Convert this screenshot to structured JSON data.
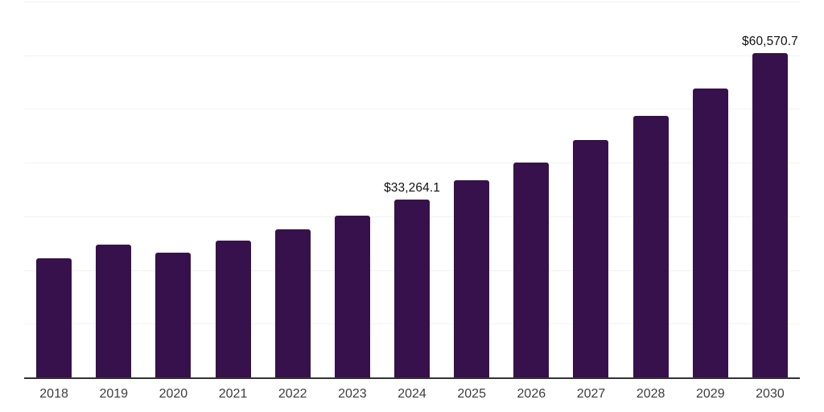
{
  "chart_data": {
    "type": "bar",
    "title": "",
    "xlabel": "",
    "ylabel": "",
    "legend": "none",
    "categories": [
      "2018",
      "2019",
      "2020",
      "2021",
      "2022",
      "2023",
      "2024",
      "2025",
      "2026",
      "2027",
      "2028",
      "2029",
      "2030"
    ],
    "values": [
      22400,
      24900,
      23400,
      25600,
      27800,
      30300,
      33264.1,
      36900,
      40100,
      44300,
      48900,
      53900,
      60570.7
    ],
    "point_labels": [
      "",
      "",
      "",
      "",
      "",
      "",
      "$33,264.1",
      "",
      "",
      "",
      "",
      "",
      "$60,570.7"
    ],
    "ylim": [
      0,
      70000
    ],
    "y_grid_step": 10000,
    "y_tick_labels_visible": false,
    "grid": "horizontal",
    "colors": {
      "bar": "#36114B",
      "gridline": "#f2f2f2",
      "axis": "#333333",
      "tick_label": "#3d3d3d",
      "data_label": "#111111",
      "background": "#ffffff"
    }
  }
}
